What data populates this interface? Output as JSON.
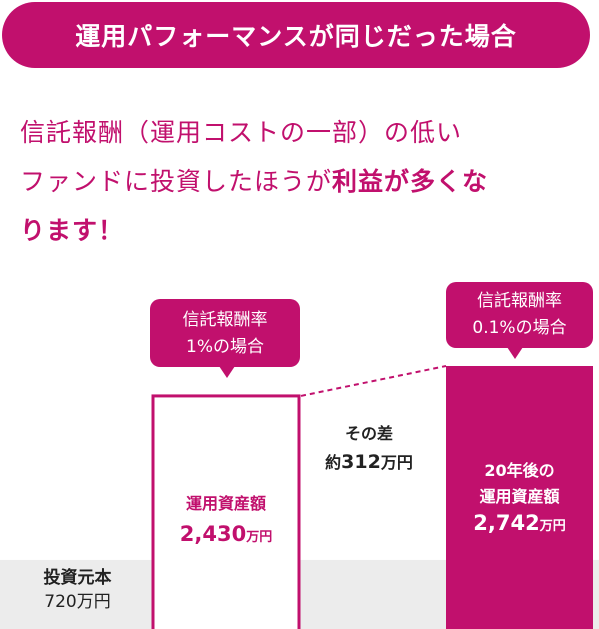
{
  "title": "運用パフォーマンスが同じだった場合",
  "lead": {
    "line1": "信託報酬（運用コストの一部）の低い",
    "line2_a": "ファンドに投資したほうが",
    "line2_b": "利益が多くな",
    "line3": "ります！"
  },
  "chart_data": {
    "type": "bar",
    "categories": [
      "投資元本",
      "信託報酬率1%の場合",
      "信託報酬率0.1%の場合"
    ],
    "values": [
      720,
      2430,
      2742
    ],
    "unit": "万円",
    "ylim": [
      0,
      2742
    ],
    "grid": false,
    "annotations": {
      "diff_label": "その差",
      "diff_prefix": "約",
      "diff_value": "312",
      "diff_unit": "万円"
    }
  },
  "colors": {
    "accent": "#c1106d",
    "principal_band": "#ececec",
    "outline_bar_fill": "#ffffff"
  },
  "labels": {
    "principal_name": "投資元本",
    "principal_value": "720",
    "principal_unit": "万円",
    "tag1_line1": "信託報酬率",
    "tag1_line2": "1%の場合",
    "tag2_line1": "信託報酬率",
    "tag2_line2": "0.1%の場合",
    "bar1_name": "運用資産額",
    "bar1_value": "2,430",
    "bar1_unit": "万円",
    "bar2_line1": "20年後の",
    "bar2_line2": "運用資産額",
    "bar2_value": "2,742",
    "bar2_unit": "万円"
  }
}
